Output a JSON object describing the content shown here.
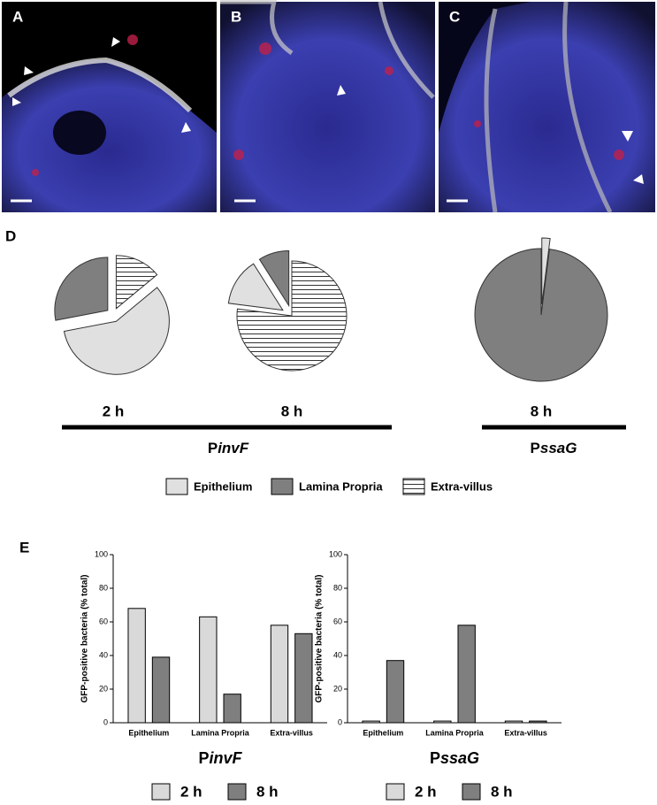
{
  "image_panels": [
    {
      "label": "A"
    },
    {
      "label": "B"
    },
    {
      "label": "C"
    }
  ],
  "panel_labels": {
    "pies": "D",
    "bars": "E"
  },
  "pie_groups": [
    {
      "title": [
        "P",
        "invF"
      ]
    },
    {
      "title": [
        "P",
        "ssaG"
      ]
    }
  ],
  "pie_legend": [
    {
      "name": "Epithelium",
      "color": "#e0e0e0"
    },
    {
      "name": "Lamina Propria",
      "color": "#7f7f7f"
    },
    {
      "name": "Extra-villus",
      "color": "hatch"
    }
  ],
  "chart_data": [
    {
      "type": "pie",
      "title": "2 h",
      "categories": [
        "Extra-villus",
        "Epithelium",
        "Lamina Propria"
      ],
      "values": [
        14,
        58,
        28
      ]
    },
    {
      "type": "pie",
      "title": "8 h",
      "categories": [
        "Extra-villus",
        "Epithelium",
        "Lamina Propria"
      ],
      "values": [
        77,
        14,
        9
      ]
    },
    {
      "type": "pie",
      "title": "8 h",
      "categories": [
        "Epithelium",
        "Lamina Propria"
      ],
      "values": [
        2,
        98
      ]
    },
    {
      "type": "bar",
      "title": [
        "P",
        "invF"
      ],
      "y_label": "GFP-positive bacteria (% total)",
      "categories": [
        "Epithelium",
        "Lamina Propria",
        "Extra-villus"
      ],
      "series": [
        {
          "name": "2 h",
          "color": "#d9d9d9",
          "values": [
            68,
            63,
            58
          ]
        },
        {
          "name": "8 h",
          "color": "#7f7f7f",
          "values": [
            39,
            17,
            53
          ]
        }
      ],
      "ylim": [
        0,
        100
      ],
      "yticks": [
        0,
        20,
        40,
        60,
        80,
        100
      ]
    },
    {
      "type": "bar",
      "title": [
        "P",
        "ssaG"
      ],
      "y_label": "GFP-positive bacteria (% total)",
      "categories": [
        "Epithelium",
        "Lamina Propria",
        "Extra-villus"
      ],
      "series": [
        {
          "name": "2 h",
          "color": "#d9d9d9",
          "values": [
            1,
            1,
            1
          ]
        },
        {
          "name": "8 h",
          "color": "#7f7f7f",
          "values": [
            37,
            58,
            1
          ]
        }
      ],
      "ylim": [
        0,
        100
      ],
      "yticks": [
        0,
        20,
        40,
        60,
        80,
        100
      ]
    }
  ]
}
